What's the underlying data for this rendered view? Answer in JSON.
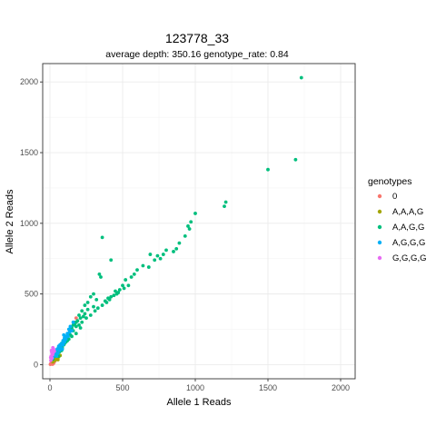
{
  "chart_data": {
    "type": "scatter",
    "title": "123778_33",
    "subtitle": "average depth:  350.16  genotype_rate:  0.84",
    "xlabel": "Allele 1 Reads",
    "ylabel": "Allele 2 Reads",
    "xlim": [
      -50,
      2100
    ],
    "ylim": [
      -100,
      2130
    ],
    "xticks": [
      0,
      500,
      1000,
      1500,
      2000
    ],
    "yticks": [
      0,
      500,
      1000,
      1500,
      2000
    ],
    "grid": true,
    "legend": {
      "title": "genotypes",
      "placement": "right"
    },
    "series": [
      {
        "name": "0",
        "color": "#F8766D",
        "points": [
          [
            5,
            5
          ],
          [
            10,
            15
          ],
          [
            15,
            8
          ],
          [
            20,
            25
          ],
          [
            8,
            30
          ],
          [
            30,
            20
          ],
          [
            12,
            40
          ],
          [
            25,
            10
          ],
          [
            180,
            330
          ],
          [
            170,
            300
          ],
          [
            40,
            35
          ],
          [
            3,
            2
          ],
          [
            18,
            3
          ]
        ]
      },
      {
        "name": "A,A,A,G",
        "color": "#A3A500",
        "points": [
          [
            20,
            20
          ],
          [
            35,
            30
          ],
          [
            50,
            40
          ],
          [
            60,
            55
          ],
          [
            45,
            60
          ],
          [
            70,
            65
          ],
          [
            30,
            45
          ],
          [
            15,
            25
          ],
          [
            55,
            35
          ]
        ]
      },
      {
        "name": "A,A,G,G",
        "color": "#00BF7D",
        "points": [
          [
            1730,
            2030
          ],
          [
            1690,
            1450
          ],
          [
            1500,
            1380
          ],
          [
            1210,
            1150
          ],
          [
            1200,
            1120
          ],
          [
            1000,
            1070
          ],
          [
            970,
            1010
          ],
          [
            950,
            980
          ],
          [
            960,
            960
          ],
          [
            930,
            910
          ],
          [
            890,
            860
          ],
          [
            870,
            820
          ],
          [
            850,
            800
          ],
          [
            800,
            810
          ],
          [
            780,
            780
          ],
          [
            760,
            750
          ],
          [
            720,
            740
          ],
          [
            690,
            780
          ],
          [
            640,
            700
          ],
          [
            600,
            670
          ],
          [
            580,
            640
          ],
          [
            560,
            620
          ],
          [
            680,
            690
          ],
          [
            740,
            770
          ],
          [
            520,
            600
          ],
          [
            500,
            560
          ],
          [
            480,
            530
          ],
          [
            460,
            500
          ],
          [
            540,
            560
          ],
          [
            510,
            540
          ],
          [
            450,
            520
          ],
          [
            420,
            480
          ],
          [
            400,
            470
          ],
          [
            380,
            450
          ],
          [
            360,
            900
          ],
          [
            350,
            620
          ],
          [
            340,
            640
          ],
          [
            420,
            740
          ],
          [
            300,
            500
          ],
          [
            280,
            480
          ],
          [
            320,
            460
          ],
          [
            260,
            440
          ],
          [
            240,
            420
          ],
          [
            300,
            410
          ],
          [
            220,
            380
          ],
          [
            200,
            350
          ],
          [
            260,
            390
          ],
          [
            240,
            360
          ],
          [
            230,
            340
          ],
          [
            210,
            330
          ],
          [
            190,
            310
          ],
          [
            180,
            300
          ],
          [
            170,
            290
          ],
          [
            160,
            280
          ],
          [
            150,
            260
          ],
          [
            140,
            240
          ],
          [
            130,
            220
          ],
          [
            120,
            200
          ],
          [
            110,
            190
          ],
          [
            100,
            180
          ],
          [
            90,
            160
          ],
          [
            80,
            150
          ],
          [
            70,
            140
          ],
          [
            60,
            120
          ],
          [
            50,
            100
          ],
          [
            40,
            80
          ],
          [
            30,
            60
          ],
          [
            20,
            40
          ],
          [
            150,
            200
          ],
          [
            130,
            180
          ],
          [
            110,
            160
          ],
          [
            95,
            140
          ],
          [
            85,
            120
          ],
          [
            75,
            100
          ],
          [
            65,
            90
          ],
          [
            180,
            270
          ],
          [
            200,
            280
          ],
          [
            220,
            300
          ],
          [
            250,
            330
          ],
          [
            280,
            350
          ],
          [
            310,
            380
          ],
          [
            330,
            400
          ],
          [
            360,
            420
          ],
          [
            390,
            440
          ],
          [
            410,
            460
          ],
          [
            440,
            490
          ],
          [
            470,
            510
          ],
          [
            160,
            240
          ],
          [
            140,
            210
          ],
          [
            120,
            170
          ],
          [
            100,
            150
          ],
          [
            60,
            60
          ],
          [
            80,
            100
          ],
          [
            180,
            220
          ],
          [
            210,
            260
          ]
        ]
      },
      {
        "name": "A,G,G,G",
        "color": "#00B0F6",
        "points": [
          [
            140,
            270
          ],
          [
            150,
            240
          ],
          [
            120,
            220
          ],
          [
            110,
            200
          ],
          [
            100,
            190
          ],
          [
            130,
            250
          ],
          [
            90,
            170
          ],
          [
            80,
            150
          ],
          [
            70,
            140
          ],
          [
            60,
            130
          ],
          [
            50,
            110
          ],
          [
            40,
            90
          ],
          [
            30,
            70
          ],
          [
            20,
            50
          ],
          [
            100,
            160
          ],
          [
            110,
            180
          ],
          [
            90,
            140
          ],
          [
            85,
            110
          ],
          [
            75,
            120
          ],
          [
            65,
            100
          ],
          [
            55,
            80
          ],
          [
            45,
            60
          ],
          [
            160,
            300
          ],
          [
            135,
            230
          ],
          [
            95,
            210
          ],
          [
            125,
            200
          ],
          [
            70,
            110
          ]
        ]
      },
      {
        "name": "G,G,G,G",
        "color": "#E76BF3",
        "points": [
          [
            10,
            100
          ],
          [
            15,
            80
          ],
          [
            8,
            60
          ],
          [
            20,
            120
          ],
          [
            12,
            90
          ],
          [
            25,
            110
          ],
          [
            18,
            70
          ],
          [
            5,
            50
          ],
          [
            30,
            95
          ],
          [
            22,
            85
          ],
          [
            14,
            45
          ],
          [
            6,
            30
          ]
        ]
      }
    ]
  }
}
